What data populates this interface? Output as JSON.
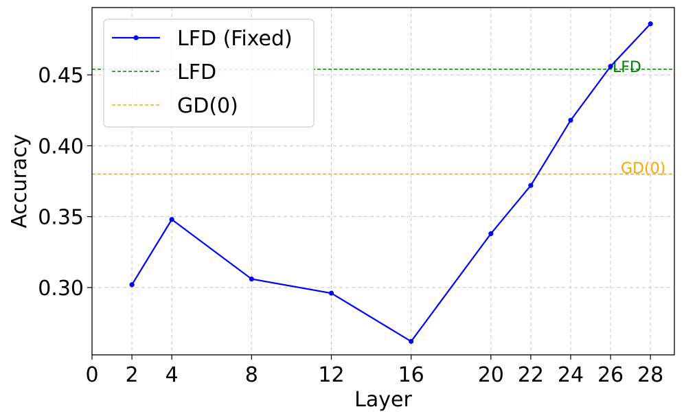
{
  "chart_data": {
    "type": "line",
    "xlabel": "Layer",
    "ylabel": "Accuracy",
    "xlim": [
      0,
      29.2
    ],
    "ylim": [
      0.2525,
      0.4975
    ],
    "x_ticks": [
      0,
      2,
      4,
      8,
      12,
      16,
      20,
      22,
      24,
      26,
      28
    ],
    "y_ticks": [
      0.3,
      0.35,
      0.4,
      0.45
    ],
    "y_tick_labels": [
      "0.30",
      "0.35",
      "0.40",
      "0.45"
    ],
    "grid": true,
    "legend_position": "top-left",
    "series": [
      {
        "name": "LFD (Fixed)",
        "color": "#0000ff",
        "style": "solid-with-markers",
        "x": [
          2,
          4,
          8,
          12,
          16,
          20,
          22,
          24,
          26,
          28
        ],
        "y": [
          0.302,
          0.348,
          0.306,
          0.296,
          0.262,
          0.338,
          0.372,
          0.418,
          0.456,
          0.486
        ]
      }
    ],
    "reference_lines": [
      {
        "name": "LFD",
        "label": "LFD",
        "value": 0.454,
        "color": "#008000",
        "style": "dashed"
      },
      {
        "name": "GD(0)",
        "label": "GD(0)",
        "value": 0.38,
        "color": "#ffa500",
        "style": "dashed"
      }
    ]
  }
}
